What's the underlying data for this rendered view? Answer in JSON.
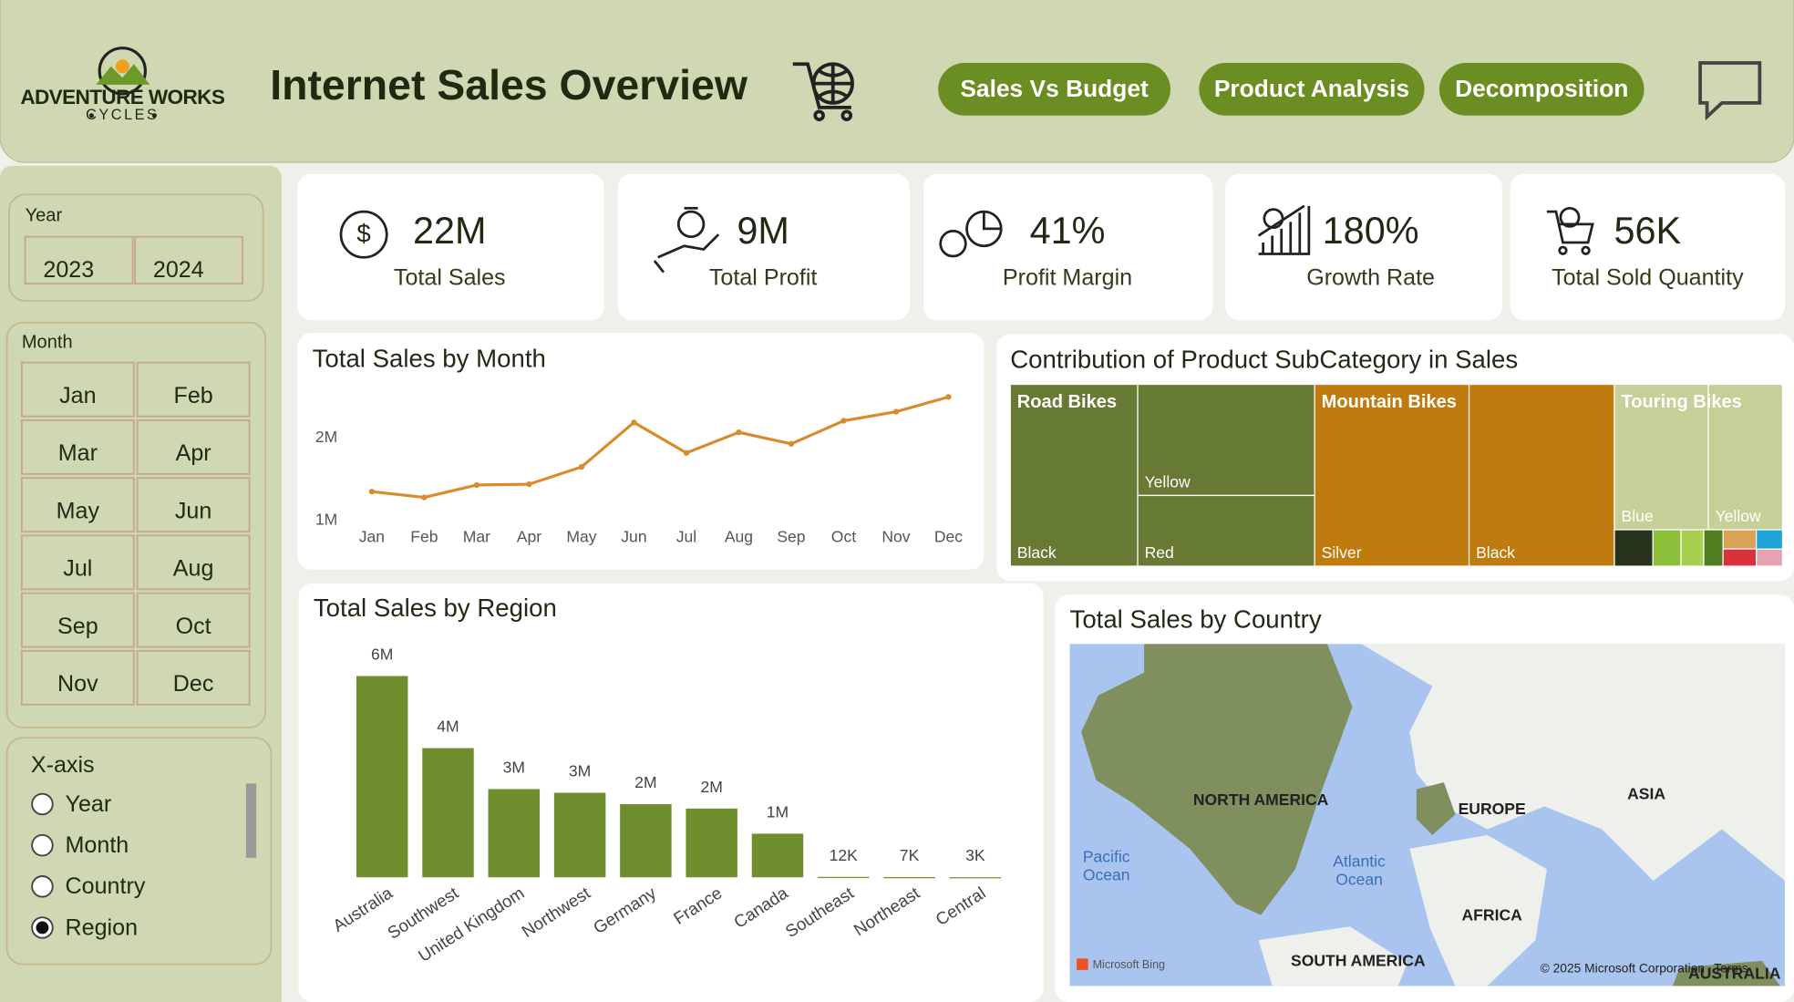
{
  "header": {
    "brand": "ADVENTURE WORKS",
    "brand_sub": "CYCLES",
    "title": "Internet Sales Overview"
  },
  "nav": [
    "Sales Vs Budget",
    "Product Analysis",
    "Decomposition"
  ],
  "filters": {
    "year": {
      "label": "Year",
      "options": [
        "2023",
        "2024"
      ]
    },
    "month": {
      "label": "Month",
      "options": [
        "Jan",
        "Feb",
        "Mar",
        "Apr",
        "May",
        "Jun",
        "Jul",
        "Aug",
        "Sep",
        "Oct",
        "Nov",
        "Dec"
      ]
    },
    "x_axis": {
      "label": "X-axis",
      "options": [
        "Year",
        "Month",
        "Country",
        "Region"
      ],
      "selected": "Region"
    }
  },
  "kpis": [
    {
      "value": "22M",
      "label": "Total Sales"
    },
    {
      "value": "9M",
      "label": "Total Profit"
    },
    {
      "value": "41%",
      "label": "Profit Margin"
    },
    {
      "value": "180%",
      "label": "Growth Rate"
    },
    {
      "value": "56K",
      "label": "Total Sold Quantity"
    }
  ],
  "chart_data": [
    {
      "type": "line",
      "title": "Total Sales by Month",
      "categories": [
        "Jan",
        "Feb",
        "Mar",
        "Apr",
        "May",
        "Jun",
        "Jul",
        "Aug",
        "Sep",
        "Oct",
        "Nov",
        "Dec"
      ],
      "values": [
        1350000,
        1280000,
        1430000,
        1440000,
        1650000,
        2190000,
        1820000,
        2070000,
        1930000,
        2210000,
        2320000,
        2500000
      ],
      "color": "#d98a2b",
      "ylim": [
        900000,
        2600000
      ],
      "yticks": [
        {
          "value": 1000000,
          "label": "1M"
        },
        {
          "value": 2000000,
          "label": "2M"
        }
      ]
    },
    {
      "type": "treemap",
      "title": "Contribution of Product SubCategory in Sales",
      "groups": [
        {
          "name": "Road Bikes",
          "color": "#667a34",
          "items": [
            {
              "name": "Black",
              "value": 3630000
            },
            {
              "name": "Yellow",
              "value": 3080000
            },
            {
              "name": "Red",
              "value": 1960000
            }
          ]
        },
        {
          "name": "Mountain Bikes",
          "color": "#c07b0f",
          "items": [
            {
              "name": "Silver",
              "value": 4400000
            },
            {
              "name": "Black",
              "value": 4140000
            }
          ]
        },
        {
          "name": "Touring Bikes",
          "color": "#c5cf97",
          "items": [
            {
              "name": "Blue",
              "value": 2140000
            },
            {
              "name": "Yellow",
              "value": 1690000
            },
            {
              "name": null,
              "value": 220000,
              "color": "#26331a"
            },
            {
              "name": null,
              "value": 160000,
              "color": "#8cbf3a"
            },
            {
              "name": null,
              "value": 130000,
              "color": "#a8cf50"
            },
            {
              "name": null,
              "value": 110000,
              "color": "#4f7d1f"
            },
            {
              "name": null,
              "value": 100000,
              "color": "#d9a355"
            },
            {
              "name": null,
              "value": 90000,
              "color": "#d8313c"
            },
            {
              "name": null,
              "value": 80000,
              "color": "#1ea5d8"
            },
            {
              "name": null,
              "value": 70000,
              "color": "#e6a2b3"
            }
          ]
        }
      ]
    },
    {
      "type": "bar",
      "title": "Total Sales by Region",
      "categories": [
        "Australia",
        "Southwest",
        "United Kingdom",
        "Northwest",
        "Germany",
        "France",
        "Canada",
        "Southeast",
        "Northeast",
        "Central"
      ],
      "values": [
        6000000,
        3850000,
        2630000,
        2520000,
        2180000,
        2050000,
        1300000,
        12000,
        7000,
        3000
      ],
      "value_labels": [
        "6M",
        "4M",
        "3M",
        "3M",
        "2M",
        "2M",
        "1M",
        "12K",
        "7K",
        "3K"
      ],
      "color": "#6f8f2f",
      "ylim": [
        0,
        6000000
      ]
    }
  ],
  "map": {
    "title": "Total Sales by Country",
    "continents": [
      "NORTH AMERICA",
      "EUROPE",
      "ASIA",
      "AFRICA",
      "SOUTH AMERICA",
      "AUSTRALIA"
    ],
    "oceans": [
      [
        "Pacific",
        "Ocean"
      ],
      [
        "Atlantic",
        "Ocean"
      ]
    ],
    "attribution": "Microsoft Bing",
    "copyright": "© 2025 Microsoft Corporation",
    "terms": "Terms"
  }
}
